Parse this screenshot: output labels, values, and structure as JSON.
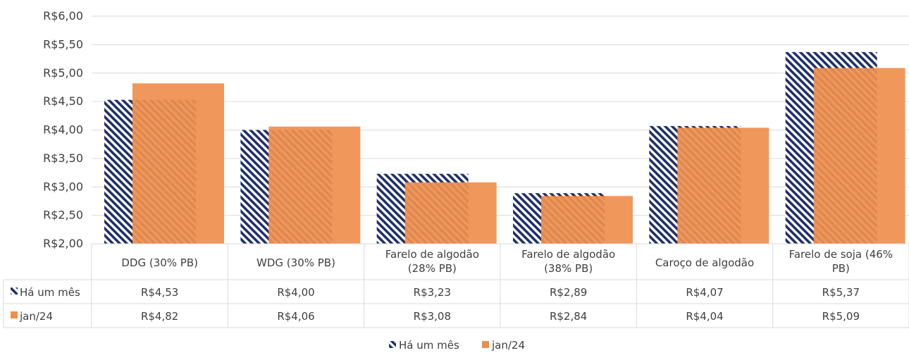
{
  "chart_data": {
    "type": "bar",
    "categories": [
      [
        "DDG (30% PB)"
      ],
      [
        "WDG (30% PB)"
      ],
      [
        "Farelo de algodão",
        "(28% PB)"
      ],
      [
        "Farelo de algodão",
        "(38% PB)"
      ],
      [
        "Caroço de algodão"
      ],
      [
        "Farelo de soja (46%",
        "PB)"
      ]
    ],
    "series": [
      {
        "name": "Há um mês",
        "values": [
          4.53,
          4.0,
          3.23,
          2.89,
          4.07,
          5.37
        ],
        "labels": [
          "R$4,53",
          "R$4,00",
          "R$3,23",
          "R$2,89",
          "R$4,07",
          "R$5,37"
        ],
        "color": "#1f2f6b",
        "pattern": "diagonal-stripes"
      },
      {
        "name": "jan/24",
        "values": [
          4.82,
          4.06,
          3.08,
          2.84,
          4.04,
          5.09
        ],
        "labels": [
          "R$4,82",
          "R$4,06",
          "R$3,08",
          "R$2,84",
          "R$4,04",
          "R$5,09"
        ],
        "color": "#ef8f4d",
        "pattern": "solid"
      }
    ],
    "ylim": [
      2.0,
      6.0
    ],
    "yticks": [
      {
        "value": 2.0,
        "label": "R$2,00"
      },
      {
        "value": 2.5,
        "label": "R$2,50"
      },
      {
        "value": 3.0,
        "label": "R$3,00"
      },
      {
        "value": 3.5,
        "label": "R$3,50"
      },
      {
        "value": 4.0,
        "label": "R$4,00"
      },
      {
        "value": 4.5,
        "label": "R$4,50"
      },
      {
        "value": 5.0,
        "label": "R$5,00"
      },
      {
        "value": 5.5,
        "label": "R$5,50"
      },
      {
        "value": 6.0,
        "label": "R$6,00"
      }
    ],
    "grid": true,
    "legend": "bottom-center",
    "data_table": true,
    "title": "",
    "xlabel": "",
    "ylabel": ""
  }
}
